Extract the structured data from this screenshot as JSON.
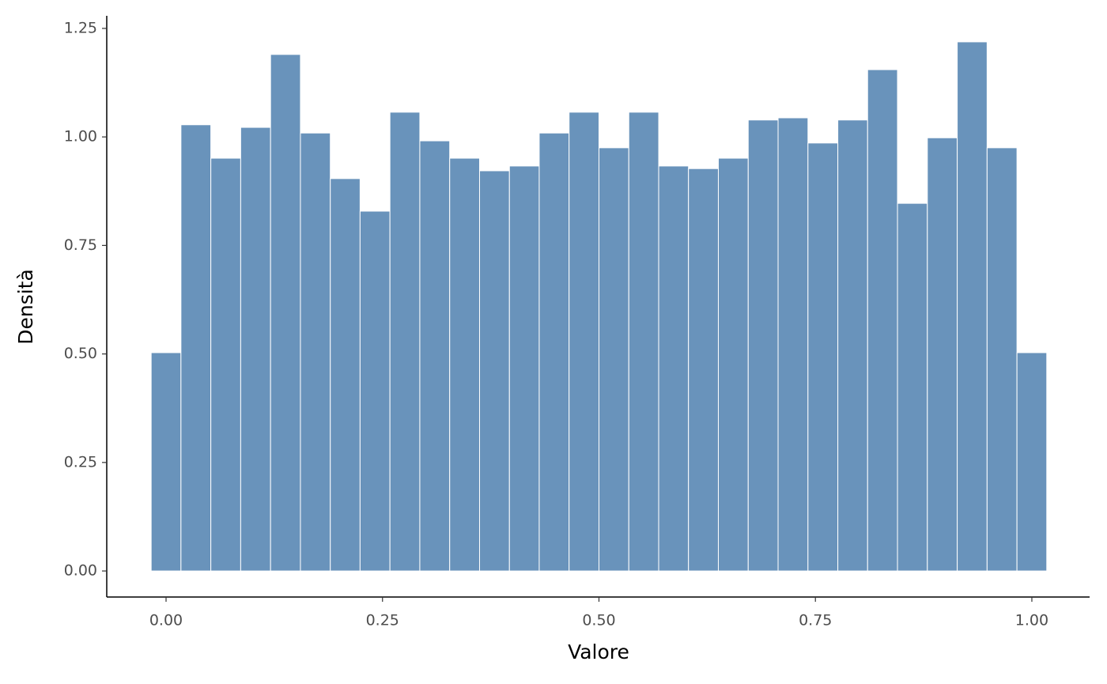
{
  "chart_data": {
    "type": "histogram",
    "x_label": "Valore",
    "y_label": "Densità",
    "bins": [
      -0.0172,
      0.0172,
      0.0517,
      0.0862,
      0.1207,
      0.1552,
      0.1897,
      0.2241,
      0.2586,
      0.2931,
      0.3276,
      0.3621,
      0.3966,
      0.431,
      0.4655,
      0.5,
      0.5345,
      0.569,
      0.6034,
      0.6379,
      0.6724,
      0.7069,
      0.7414,
      0.7759,
      0.8103,
      0.8448,
      0.8793,
      0.9138,
      0.9483,
      0.9828,
      1.0172
    ],
    "values": [
      0.503,
      1.028,
      0.951,
      1.022,
      1.19,
      1.009,
      0.904,
      0.829,
      1.057,
      0.991,
      0.951,
      0.922,
      0.933,
      1.009,
      1.057,
      0.975,
      1.057,
      0.933,
      0.927,
      0.951,
      1.039,
      1.044,
      0.986,
      1.039,
      1.155,
      0.847,
      0.998,
      1.219,
      0.975,
      0.503
    ],
    "color": "#6993bb",
    "xlim": [
      -0.0685,
      1.0667
    ],
    "ylim": [
      -0.06,
      1.279
    ],
    "xticks": [
      {
        "value": 0,
        "label": "0.00"
      },
      {
        "value": 0.25,
        "label": "0.25"
      },
      {
        "value": 0.5,
        "label": "0.50"
      },
      {
        "value": 0.75,
        "label": "0.75"
      },
      {
        "value": 1,
        "label": "1.00"
      }
    ],
    "yticks": [
      {
        "value": 0,
        "label": "0.00"
      },
      {
        "value": 0.25,
        "label": "0.25"
      },
      {
        "value": 0.5,
        "label": "0.50"
      },
      {
        "value": 0.75,
        "label": "0.75"
      },
      {
        "value": 1,
        "label": "1.00"
      },
      {
        "value": 1.25,
        "label": "1.25"
      }
    ],
    "grid": false
  }
}
